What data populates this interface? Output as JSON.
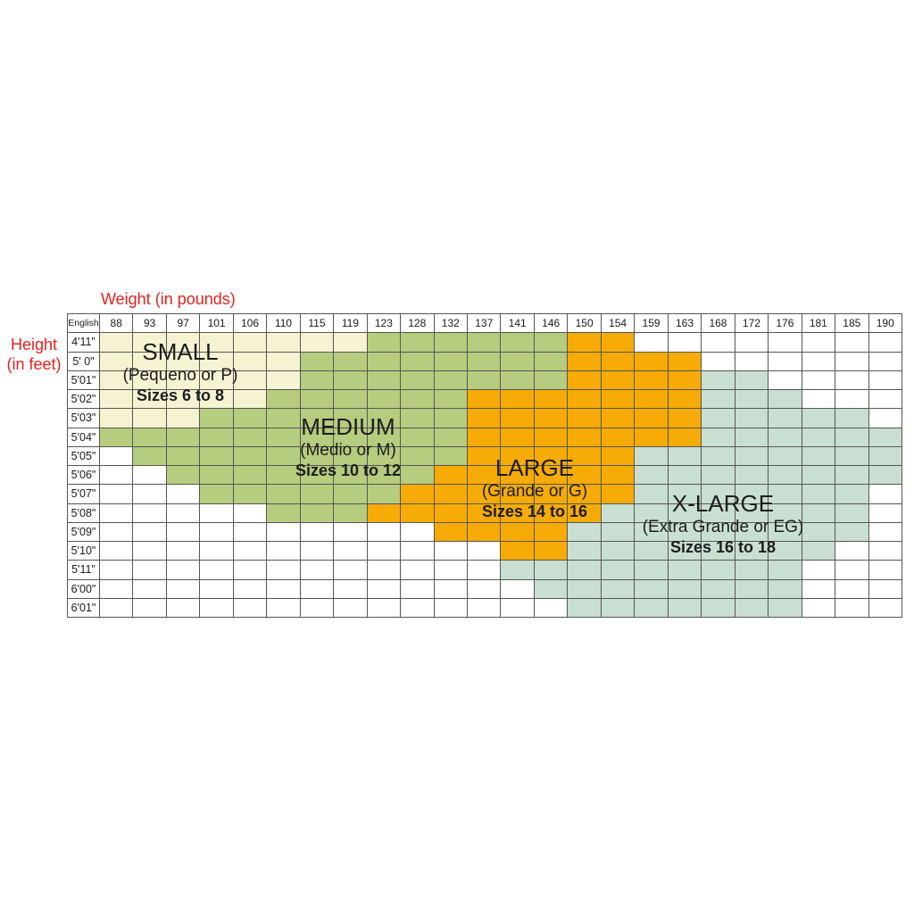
{
  "chart_data": {
    "type": "heatmap",
    "xlabel": "Weight (in pounds)",
    "ylabel": "Height (in feet)",
    "ylabel_lines": [
      "Height",
      "(in feet)"
    ],
    "unit_header": "English",
    "x_categories": [
      "88",
      "93",
      "97",
      "101",
      "106",
      "110",
      "115",
      "119",
      "123",
      "128",
      "132",
      "137",
      "141",
      "146",
      "150",
      "154",
      "159",
      "163",
      "168",
      "172",
      "176",
      "181",
      "185",
      "190"
    ],
    "y_categories": [
      "4'11\"",
      "5' 0\"",
      "5'01\"",
      "5'02\"",
      "5'03\"",
      "5'04\"",
      "5'05\"",
      "5'06\"",
      "5'07\"",
      "5'08\"",
      "5'09\"",
      "5'10\"",
      "5'11\"",
      "6'00\"",
      "6'01\""
    ],
    "grid_color": "#565656",
    "axis_label_color": "#e8211d",
    "empty_color": "#ffffff",
    "legend_position": "labels overlaid on colored regions",
    "regions": [
      {
        "key": "small",
        "title": "SMALL",
        "subtitle": "(Pequeno or P)",
        "sizes_line": "Sizes 6 to 8",
        "color": "#f6f3d2"
      },
      {
        "key": "medium",
        "title": "MEDIUM",
        "subtitle": "(Medio or M)",
        "sizes_line": "Sizes 10 to 12",
        "color": "#b6cc7e"
      },
      {
        "key": "large",
        "title": "LARGE",
        "subtitle": "(Grande or G)",
        "sizes_line": "Sizes 14 to 16",
        "color": "#f7ab07"
      },
      {
        "key": "xlarge",
        "title": "X-LARGE",
        "subtitle": "(Extra Grande or EG)",
        "sizes_line": "Sizes 16 to 18",
        "color": "#c9dfd2"
      }
    ],
    "rows": [
      {
        "height": "4'11\"",
        "bands": [
          {
            "size": "small",
            "span": 8
          },
          {
            "size": "medium",
            "span": 6
          },
          {
            "size": "large",
            "span": 2
          },
          {
            "size": "none",
            "span": 8
          }
        ]
      },
      {
        "height": "5' 0\"",
        "bands": [
          {
            "size": "small",
            "span": 6
          },
          {
            "size": "medium",
            "span": 8
          },
          {
            "size": "large",
            "span": 4
          },
          {
            "size": "none",
            "span": 6
          }
        ]
      },
      {
        "height": "5'01\"",
        "bands": [
          {
            "size": "small",
            "span": 6
          },
          {
            "size": "medium",
            "span": 8
          },
          {
            "size": "large",
            "span": 4
          },
          {
            "size": "xlarge",
            "span": 2
          },
          {
            "size": "none",
            "span": 4
          }
        ]
      },
      {
        "height": "5'02\"",
        "bands": [
          {
            "size": "small",
            "span": 5
          },
          {
            "size": "medium",
            "span": 6
          },
          {
            "size": "large",
            "span": 7
          },
          {
            "size": "xlarge",
            "span": 3
          },
          {
            "size": "none",
            "span": 3
          }
        ]
      },
      {
        "height": "5'03\"",
        "bands": [
          {
            "size": "small",
            "span": 3
          },
          {
            "size": "medium",
            "span": 8
          },
          {
            "size": "large",
            "span": 7
          },
          {
            "size": "xlarge",
            "span": 5
          },
          {
            "size": "none",
            "span": 1
          }
        ]
      },
      {
        "height": "5'04\"",
        "bands": [
          {
            "size": "medium",
            "span": 11
          },
          {
            "size": "large",
            "span": 7
          },
          {
            "size": "xlarge",
            "span": 6
          }
        ]
      },
      {
        "height": "5'05\"",
        "bands": [
          {
            "size": "none",
            "span": 1
          },
          {
            "size": "medium",
            "span": 10
          },
          {
            "size": "large",
            "span": 5
          },
          {
            "size": "xlarge",
            "span": 8
          }
        ]
      },
      {
        "height": "5'06\"",
        "bands": [
          {
            "size": "none",
            "span": 2
          },
          {
            "size": "medium",
            "span": 8
          },
          {
            "size": "large",
            "span": 6
          },
          {
            "size": "xlarge",
            "span": 8
          }
        ]
      },
      {
        "height": "5'07\"",
        "bands": [
          {
            "size": "none",
            "span": 3
          },
          {
            "size": "medium",
            "span": 6
          },
          {
            "size": "large",
            "span": 7
          },
          {
            "size": "xlarge",
            "span": 7
          },
          {
            "size": "none",
            "span": 1
          }
        ]
      },
      {
        "height": "5'08\"",
        "bands": [
          {
            "size": "none",
            "span": 5
          },
          {
            "size": "medium",
            "span": 3
          },
          {
            "size": "large",
            "span": 7
          },
          {
            "size": "xlarge",
            "span": 8
          },
          {
            "size": "none",
            "span": 1
          }
        ]
      },
      {
        "height": "5'09\"",
        "bands": [
          {
            "size": "none",
            "span": 10
          },
          {
            "size": "large",
            "span": 4
          },
          {
            "size": "xlarge",
            "span": 9
          },
          {
            "size": "none",
            "span": 1
          }
        ]
      },
      {
        "height": "5'10\"",
        "bands": [
          {
            "size": "none",
            "span": 12
          },
          {
            "size": "large",
            "span": 2
          },
          {
            "size": "xlarge",
            "span": 8
          },
          {
            "size": "none",
            "span": 2
          }
        ]
      },
      {
        "height": "5'11\"",
        "bands": [
          {
            "size": "none",
            "span": 12
          },
          {
            "size": "xlarge",
            "span": 9
          },
          {
            "size": "none",
            "span": 3
          }
        ]
      },
      {
        "height": "6'00\"",
        "bands": [
          {
            "size": "none",
            "span": 13
          },
          {
            "size": "xlarge",
            "span": 8
          },
          {
            "size": "none",
            "span": 3
          }
        ]
      },
      {
        "height": "6'01\"",
        "bands": [
          {
            "size": "none",
            "span": 14
          },
          {
            "size": "xlarge",
            "span": 7
          },
          {
            "size": "none",
            "span": 3
          }
        ]
      }
    ]
  }
}
